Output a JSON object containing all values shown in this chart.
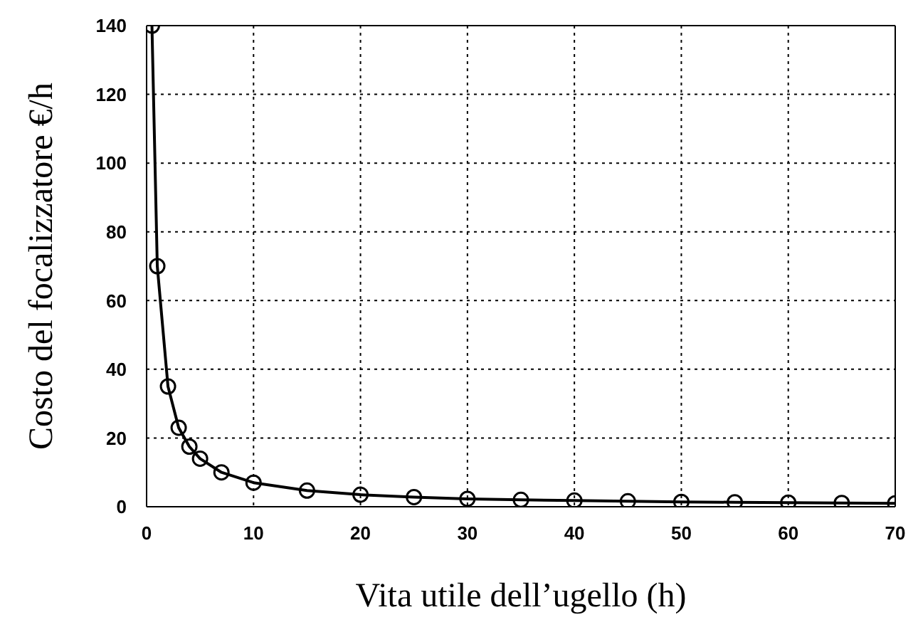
{
  "chart_data": {
    "type": "line",
    "xlabel": "Vita utile dell’ugello (h)",
    "ylabel": "Costo del focalizzatore €/h",
    "x": [
      0.5,
      1,
      2,
      3,
      4,
      5,
      7,
      10,
      15,
      20,
      25,
      30,
      35,
      40,
      45,
      50,
      55,
      60,
      65,
      70
    ],
    "series": [
      {
        "color": "#000000",
        "values": [
          140,
          70,
          35,
          23,
          17.5,
          14,
          10,
          7,
          4.7,
          3.5,
          2.8,
          2.3,
          2,
          1.8,
          1.6,
          1.4,
          1.3,
          1.2,
          1.1,
          1
        ]
      }
    ],
    "xlim": [
      0,
      70
    ],
    "xticks": [
      0,
      10,
      20,
      30,
      40,
      50,
      60,
      70
    ],
    "ylim": [
      0,
      140
    ],
    "yticks": [
      0,
      20,
      40,
      60,
      80,
      100,
      120,
      140
    ],
    "grid": true,
    "marker": "circle",
    "line_style": "solid"
  }
}
